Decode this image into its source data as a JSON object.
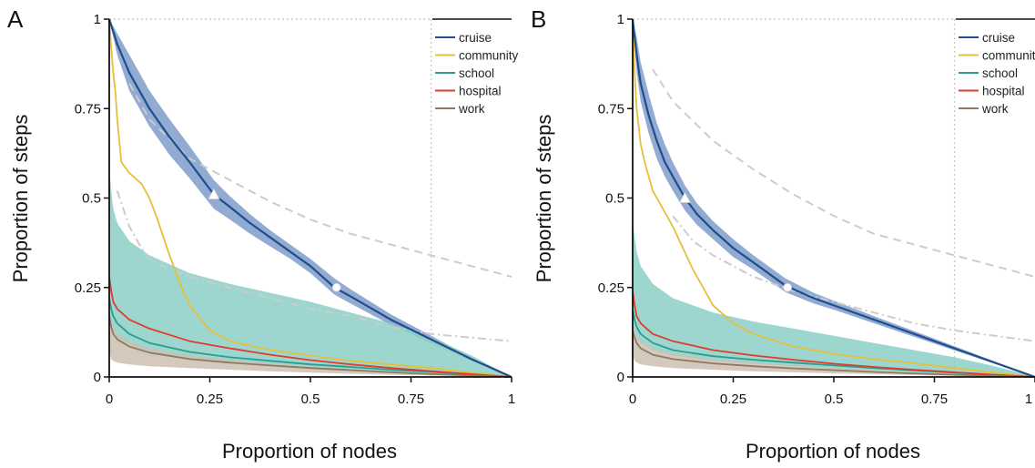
{
  "colors": {
    "cruise": "#1f4e8c",
    "cruise_band": "#7f9ccb",
    "community": "#e6bf3c",
    "school": "#2a9d8f",
    "school_band": "#8ccfc7",
    "hospital": "#e03b2c",
    "work": "#8c7a63",
    "work_band": "#cdbfb0",
    "reference": "#cccccc",
    "axis": "#111111"
  },
  "chart_data": [
    {
      "type": "line",
      "panel_label": "A",
      "xlabel": "Proportion of nodes",
      "ylabel": "Proportion of steps",
      "xlim": [
        0,
        1
      ],
      "ylim": [
        0,
        1
      ],
      "x_ticks": [
        "0",
        "0.25",
        "0.5",
        "0.75",
        "1"
      ],
      "y_ticks": [
        "0",
        "0.25",
        "0.5",
        "0.75",
        "1"
      ],
      "grid": false,
      "legend_position": "top-right",
      "reference_x": 0.8,
      "series": [
        {
          "name": "cruise",
          "color_key": "cruise",
          "x": [
            0,
            0.02,
            0.05,
            0.1,
            0.15,
            0.2,
            0.26,
            0.3,
            0.35,
            0.4,
            0.45,
            0.5,
            0.56,
            0.6,
            0.7,
            0.8,
            0.9,
            1.0
          ],
          "y": [
            1,
            0.93,
            0.85,
            0.75,
            0.67,
            0.6,
            0.51,
            0.475,
            0.43,
            0.39,
            0.35,
            0.31,
            0.25,
            0.225,
            0.16,
            0.105,
            0.05,
            0
          ],
          "band_upper": [
            1,
            0.96,
            0.9,
            0.8,
            0.72,
            0.645,
            0.55,
            0.505,
            0.455,
            0.41,
            0.37,
            0.33,
            0.275,
            0.245,
            0.175,
            0.115,
            0.055,
            0
          ],
          "band_lower": [
            1,
            0.9,
            0.8,
            0.7,
            0.62,
            0.555,
            0.47,
            0.44,
            0.4,
            0.365,
            0.33,
            0.29,
            0.23,
            0.205,
            0.145,
            0.095,
            0.045,
            0
          ]
        },
        {
          "name": "community",
          "color_key": "community",
          "x": [
            0,
            0.005,
            0.01,
            0.015,
            0.02,
            0.03,
            0.05,
            0.08,
            0.1,
            0.12,
            0.15,
            0.18,
            0.2,
            0.25,
            0.3,
            0.4,
            0.5,
            0.6,
            0.7,
            0.8,
            0.9,
            1.0
          ],
          "y": [
            1,
            0.92,
            0.85,
            0.8,
            0.72,
            0.6,
            0.57,
            0.54,
            0.5,
            0.44,
            0.34,
            0.25,
            0.2,
            0.13,
            0.1,
            0.075,
            0.06,
            0.045,
            0.035,
            0.025,
            0.012,
            0
          ]
        },
        {
          "name": "school",
          "color_key": "school",
          "x": [
            0,
            0.005,
            0.01,
            0.02,
            0.05,
            0.1,
            0.2,
            0.3,
            0.4,
            0.5,
            0.6,
            0.7,
            0.8,
            0.9,
            1.0
          ],
          "y": [
            0.22,
            0.19,
            0.17,
            0.15,
            0.12,
            0.095,
            0.07,
            0.055,
            0.045,
            0.035,
            0.028,
            0.02,
            0.014,
            0.007,
            0
          ],
          "band_upper": [
            0.58,
            0.52,
            0.47,
            0.43,
            0.38,
            0.34,
            0.29,
            0.26,
            0.235,
            0.21,
            0.18,
            0.15,
            0.11,
            0.06,
            0
          ],
          "band_lower": [
            0.18,
            0.15,
            0.13,
            0.11,
            0.09,
            0.07,
            0.05,
            0.04,
            0.032,
            0.025,
            0.02,
            0.014,
            0.009,
            0.004,
            0
          ]
        },
        {
          "name": "hospital",
          "color_key": "hospital",
          "x": [
            0,
            0.005,
            0.01,
            0.02,
            0.05,
            0.1,
            0.2,
            0.3,
            0.4,
            0.5,
            0.6,
            0.7,
            0.8,
            0.9,
            1.0
          ],
          "y": [
            0.28,
            0.24,
            0.21,
            0.19,
            0.16,
            0.135,
            0.1,
            0.08,
            0.062,
            0.047,
            0.035,
            0.025,
            0.016,
            0.008,
            0
          ]
        },
        {
          "name": "work",
          "color_key": "work",
          "x": [
            0,
            0.005,
            0.01,
            0.02,
            0.05,
            0.1,
            0.2,
            0.3,
            0.4,
            0.5,
            0.6,
            0.7,
            0.8,
            0.9,
            1.0
          ],
          "y": [
            0.17,
            0.14,
            0.12,
            0.105,
            0.085,
            0.068,
            0.05,
            0.04,
            0.032,
            0.025,
            0.019,
            0.013,
            0.008,
            0.004,
            0
          ],
          "band_upper": [
            0.19,
            0.16,
            0.14,
            0.12,
            0.1,
            0.08,
            0.06,
            0.048,
            0.038,
            0.03,
            0.023,
            0.016,
            0.01,
            0.005,
            0
          ],
          "band_lower": [
            0.07,
            0.05,
            0.045,
            0.04,
            0.035,
            0.03,
            0.025,
            0.02,
            0.016,
            0.012,
            0.009,
            0.006,
            0.004,
            0.002,
            0
          ]
        }
      ],
      "reference_curves": [
        {
          "style": "dashed",
          "x": [
            0.05,
            0.1,
            0.2,
            0.3,
            0.4,
            0.5,
            0.6,
            0.7,
            0.8,
            0.9,
            1.0
          ],
          "y": [
            0.82,
            0.72,
            0.61,
            0.55,
            0.49,
            0.44,
            0.4,
            0.37,
            0.34,
            0.31,
            0.28
          ]
        },
        {
          "style": "dash-dot",
          "x": [
            0.02,
            0.05,
            0.08,
            0.1,
            0.15,
            0.2,
            0.3,
            0.4,
            0.5,
            0.6,
            0.7,
            0.8,
            0.9,
            1.0
          ],
          "y": [
            0.52,
            0.42,
            0.36,
            0.33,
            0.3,
            0.28,
            0.25,
            0.22,
            0.19,
            0.17,
            0.14,
            0.12,
            0.11,
            0.1
          ]
        }
      ],
      "markers": [
        {
          "shape": "triangle",
          "x": 0.26,
          "y": 0.51
        },
        {
          "shape": "circle",
          "x": 0.565,
          "y": 0.25
        }
      ]
    },
    {
      "type": "line",
      "panel_label": "B",
      "xlabel": "Proportion of nodes",
      "ylabel": "Proportion of steps",
      "xlim": [
        0,
        1
      ],
      "ylim": [
        0,
        1
      ],
      "x_ticks": [
        "0",
        "0.25",
        "0.5",
        "0.75",
        "1"
      ],
      "y_ticks": [
        "0",
        "0.25",
        "0.5",
        "0.75",
        "1"
      ],
      "grid": false,
      "legend_position": "top-right",
      "reference_x": 0.8,
      "series": [
        {
          "name": "cruise",
          "color_key": "cruise",
          "x": [
            0,
            0.01,
            0.02,
            0.04,
            0.06,
            0.08,
            0.1,
            0.13,
            0.16,
            0.2,
            0.25,
            0.3,
            0.38,
            0.45,
            0.5,
            0.6,
            0.7,
            0.8,
            0.9,
            1.0
          ],
          "y": [
            1,
            0.9,
            0.82,
            0.73,
            0.66,
            0.6,
            0.56,
            0.5,
            0.455,
            0.41,
            0.36,
            0.32,
            0.255,
            0.22,
            0.2,
            0.16,
            0.12,
            0.08,
            0.04,
            0
          ],
          "band_upper": [
            1,
            0.95,
            0.88,
            0.79,
            0.71,
            0.65,
            0.6,
            0.535,
            0.485,
            0.435,
            0.385,
            0.34,
            0.275,
            0.235,
            0.213,
            0.17,
            0.128,
            0.086,
            0.043,
            0
          ],
          "band_lower": [
            1,
            0.85,
            0.77,
            0.68,
            0.61,
            0.56,
            0.52,
            0.465,
            0.425,
            0.385,
            0.335,
            0.3,
            0.237,
            0.205,
            0.188,
            0.15,
            0.112,
            0.074,
            0.037,
            0
          ]
        },
        {
          "name": "community",
          "color_key": "community",
          "x": [
            0,
            0.005,
            0.01,
            0.02,
            0.03,
            0.05,
            0.08,
            0.1,
            0.15,
            0.2,
            0.25,
            0.3,
            0.4,
            0.5,
            0.6,
            0.7,
            0.8,
            0.9,
            1.0
          ],
          "y": [
            1,
            0.85,
            0.75,
            0.65,
            0.6,
            0.52,
            0.46,
            0.42,
            0.3,
            0.2,
            0.15,
            0.12,
            0.085,
            0.065,
            0.05,
            0.038,
            0.025,
            0.012,
            0
          ]
        },
        {
          "name": "school",
          "color_key": "school",
          "x": [
            0,
            0.005,
            0.01,
            0.02,
            0.05,
            0.1,
            0.2,
            0.3,
            0.4,
            0.5,
            0.6,
            0.7,
            0.8,
            0.9,
            1.0
          ],
          "y": [
            0.19,
            0.16,
            0.14,
            0.12,
            0.095,
            0.075,
            0.058,
            0.048,
            0.04,
            0.032,
            0.025,
            0.018,
            0.012,
            0.006,
            0
          ],
          "band_upper": [
            0.44,
            0.39,
            0.35,
            0.31,
            0.26,
            0.22,
            0.18,
            0.155,
            0.135,
            0.115,
            0.095,
            0.075,
            0.055,
            0.03,
            0
          ],
          "band_lower": [
            0.16,
            0.13,
            0.11,
            0.095,
            0.075,
            0.06,
            0.045,
            0.037,
            0.03,
            0.024,
            0.018,
            0.013,
            0.008,
            0.004,
            0
          ]
        },
        {
          "name": "hospital",
          "color_key": "hospital",
          "x": [
            0,
            0.005,
            0.01,
            0.02,
            0.05,
            0.1,
            0.2,
            0.3,
            0.4,
            0.5,
            0.6,
            0.7,
            0.8,
            0.9,
            1.0
          ],
          "y": [
            0.24,
            0.2,
            0.17,
            0.15,
            0.12,
            0.1,
            0.075,
            0.06,
            0.048,
            0.037,
            0.028,
            0.02,
            0.013,
            0.006,
            0
          ]
        },
        {
          "name": "work",
          "color_key": "work",
          "x": [
            0,
            0.005,
            0.01,
            0.02,
            0.05,
            0.1,
            0.2,
            0.3,
            0.4,
            0.5,
            0.6,
            0.7,
            0.8,
            0.9,
            1.0
          ],
          "y": [
            0.13,
            0.11,
            0.095,
            0.08,
            0.062,
            0.05,
            0.038,
            0.03,
            0.024,
            0.019,
            0.014,
            0.01,
            0.006,
            0.003,
            0
          ],
          "band_upper": [
            0.16,
            0.13,
            0.115,
            0.1,
            0.08,
            0.065,
            0.05,
            0.04,
            0.032,
            0.025,
            0.019,
            0.013,
            0.008,
            0.004,
            0
          ],
          "band_lower": [
            0.06,
            0.045,
            0.04,
            0.035,
            0.03,
            0.025,
            0.02,
            0.016,
            0.013,
            0.01,
            0.008,
            0.005,
            0.003,
            0.001,
            0
          ]
        }
      ],
      "reference_curves": [
        {
          "style": "dashed",
          "x": [
            0.05,
            0.1,
            0.2,
            0.3,
            0.4,
            0.5,
            0.6,
            0.7,
            0.8,
            0.9,
            1.0
          ],
          "y": [
            0.86,
            0.77,
            0.66,
            0.58,
            0.51,
            0.45,
            0.4,
            0.37,
            0.34,
            0.31,
            0.28
          ]
        },
        {
          "style": "dash-dot",
          "x": [
            0.1,
            0.15,
            0.2,
            0.3,
            0.4,
            0.5,
            0.6,
            0.7,
            0.8,
            0.9,
            1.0
          ],
          "y": [
            0.45,
            0.38,
            0.34,
            0.28,
            0.24,
            0.21,
            0.18,
            0.15,
            0.13,
            0.115,
            0.1
          ]
        }
      ],
      "markers": [
        {
          "shape": "triangle",
          "x": 0.13,
          "y": 0.5
        },
        {
          "shape": "circle",
          "x": 0.385,
          "y": 0.25
        }
      ]
    }
  ]
}
